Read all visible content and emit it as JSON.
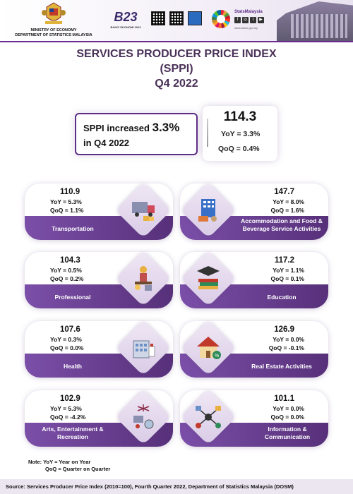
{
  "header": {
    "ministry_line1": "MINISTRY OF ECONOMY",
    "ministry_line2": "DEPARTMENT OF STATISTICS MALAYSIA",
    "banci_logo_text": "B23",
    "banci_caption": "BANCI EKONOMI 2023",
    "stats_title": "StatsMalaysia",
    "stats_url": "www.dosm.gov.my",
    "social_icons": [
      "facebook-icon",
      "instagram-icon",
      "twitter-icon",
      "youtube-icon"
    ]
  },
  "title": {
    "line1": "SERVICES PRODUCER PRICE INDEX",
    "line2": "(SPPI)",
    "line3": "Q4 2022"
  },
  "summary": {
    "text_prefix": "SPPI increased",
    "increase": "3.3%",
    "text_suffix": "in Q4 2022",
    "index": "114.3",
    "yoy": "YoY = 3.3%",
    "qoq": "QoQ =  0.4%"
  },
  "cards": [
    {
      "value": "110.9",
      "yoy": "YoY = 5.3%",
      "qoq": "QoQ = 1.1%",
      "label": "Transportation",
      "icon": "truck-icon"
    },
    {
      "value": "147.7",
      "yoy": "YoY = 8.0%",
      "qoq": "QoQ = 1.6%",
      "label": "Accommodation and Food & Beverage Service Activities",
      "icon": "hotel-icon"
    },
    {
      "value": "104.3",
      "yoy": "YoY = 0.5%",
      "qoq": "QoQ = 0.2%",
      "label": "Professional",
      "icon": "professional-icon"
    },
    {
      "value": "117.2",
      "yoy": "YoY = 1.1%",
      "qoq": "QoQ = 0.1%",
      "label": "Education",
      "icon": "books-icon"
    },
    {
      "value": "107.6",
      "yoy": "YoY = 0.3%",
      "qoq": "QoQ = 0.0%",
      "label": "Health",
      "icon": "hospital-icon"
    },
    {
      "value": "126.9",
      "yoy": "YoY = 0.0%",
      "qoq": "QoQ = -0.1%",
      "label": "Real Estate  Activities",
      "icon": "house-icon"
    },
    {
      "value": "102.9",
      "yoy": "YoY = 5.3%",
      "qoq": "QoQ = -4.2%",
      "label": "Arts, Entertainment & Recreation",
      "icon": "arts-icon"
    },
    {
      "value": "101.1",
      "yoy": "YoY = 0.0%",
      "qoq": "QoQ = 0.0%",
      "label": "Information & Communication",
      "icon": "network-icon"
    }
  ],
  "note": {
    "line1": "Note: YoY = Year on Year",
    "line2": "QoQ = Quarter on Quarter"
  },
  "footer": "Source: Services Producer Price Index (2010=100), Fourth Quarter 2022, Department of Statistics Malaysia (DOSM)",
  "colors": {
    "accent": "#5e2f86",
    "title": "#4a3158",
    "band": "#6a3d95"
  }
}
